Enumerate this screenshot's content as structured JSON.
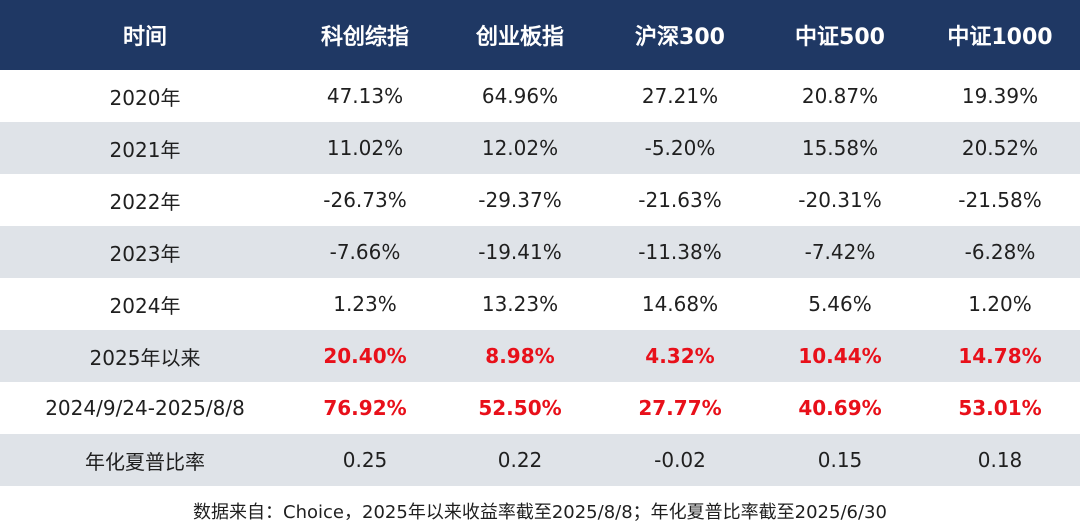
{
  "table": {
    "headers": [
      "时间",
      "科创综指",
      "创业板指",
      "沪深300",
      "中证500",
      "中证1000"
    ],
    "rows": [
      {
        "label": "2020年",
        "values": [
          "47.13%",
          "64.96%",
          "27.21%",
          "20.87%",
          "19.39%"
        ],
        "highlight": false
      },
      {
        "label": "2021年",
        "values": [
          "11.02%",
          "12.02%",
          "-5.20%",
          "15.58%",
          "20.52%"
        ],
        "highlight": false
      },
      {
        "label": "2022年",
        "values": [
          "-26.73%",
          "-29.37%",
          "-21.63%",
          "-20.31%",
          "-21.58%"
        ],
        "highlight": false
      },
      {
        "label": "2023年",
        "values": [
          "-7.66%",
          "-19.41%",
          "-11.38%",
          "-7.42%",
          "-6.28%"
        ],
        "highlight": false
      },
      {
        "label": "2024年",
        "values": [
          "1.23%",
          "13.23%",
          "14.68%",
          "5.46%",
          "1.20%"
        ],
        "highlight": false
      },
      {
        "label": "2025年以来",
        "values": [
          "20.40%",
          "8.98%",
          "4.32%",
          "10.44%",
          "14.78%"
        ],
        "highlight": true
      },
      {
        "label": "2024/9/24-2025/8/8",
        "values": [
          "76.92%",
          "52.50%",
          "27.77%",
          "40.69%",
          "53.01%"
        ],
        "highlight": true
      },
      {
        "label": "年化夏普比率",
        "values": [
          "0.25",
          "0.22",
          "-0.02",
          "0.15",
          "0.18"
        ],
        "highlight": false
      }
    ]
  },
  "footer": "数据来自：Choice，2025年以来收益率截至2025/8/8；年化夏普比率截至2025/6/30",
  "colors": {
    "header_bg": "#1f3864",
    "header_text": "#ffffff",
    "stripe_bg": "#dfe3e8",
    "highlight_text": "#e8101a"
  }
}
